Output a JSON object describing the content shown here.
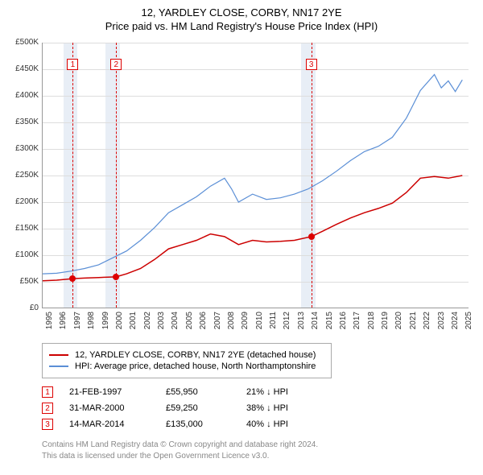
{
  "title": "12, YARDLEY CLOSE, CORBY, NN17 2YE",
  "subtitle": "Price paid vs. HM Land Registry's House Price Index (HPI)",
  "chart": {
    "type": "line",
    "ylim": [
      0,
      500000
    ],
    "ytick_step": 50000,
    "ylabels": [
      "£0",
      "£50K",
      "£100K",
      "£150K",
      "£200K",
      "£250K",
      "£300K",
      "£350K",
      "£400K",
      "£450K",
      "£500K"
    ],
    "xlim": [
      1995,
      2025.5
    ],
    "xticks": [
      1995,
      1996,
      1997,
      1998,
      1999,
      2000,
      2001,
      2002,
      2003,
      2004,
      2005,
      2006,
      2007,
      2008,
      2009,
      2010,
      2011,
      2012,
      2013,
      2014,
      2015,
      2016,
      2017,
      2018,
      2019,
      2020,
      2021,
      2022,
      2023,
      2024,
      2025
    ],
    "shaded_bands": [
      {
        "from": 1996.5,
        "to": 1997.5,
        "color": "#e8eef6"
      },
      {
        "from": 1999.5,
        "to": 2000.5,
        "color": "#e8eef6"
      },
      {
        "from": 2013.5,
        "to": 2014.5,
        "color": "#e8eef6"
      }
    ],
    "markers": [
      {
        "n": "1",
        "x": 1997.15,
        "date": "21-FEB-1997",
        "price_text": "£55,950",
        "price": 55950,
        "delta": "21% ↓ HPI"
      },
      {
        "n": "2",
        "x": 2000.25,
        "date": "31-MAR-2000",
        "price_text": "£59,250",
        "price": 59250,
        "delta": "38% ↓ HPI"
      },
      {
        "n": "3",
        "x": 2014.2,
        "date": "14-MAR-2014",
        "price_text": "£135,000",
        "price": 135000,
        "delta": "40% ↓ HPI"
      }
    ],
    "series": [
      {
        "name": "property",
        "label": "12, YARDLEY CLOSE, CORBY, NN17 2YE (detached house)",
        "color": "#cc0000",
        "width": 1.5,
        "data": [
          [
            1995,
            52000
          ],
          [
            1996,
            53000
          ],
          [
            1997.15,
            55950
          ],
          [
            1998,
            57000
          ],
          [
            1999,
            58000
          ],
          [
            2000.25,
            59250
          ],
          [
            2001,
            65000
          ],
          [
            2002,
            75000
          ],
          [
            2003,
            92000
          ],
          [
            2004,
            112000
          ],
          [
            2005,
            120000
          ],
          [
            2006,
            128000
          ],
          [
            2007,
            140000
          ],
          [
            2008,
            135000
          ],
          [
            2009,
            120000
          ],
          [
            2010,
            128000
          ],
          [
            2011,
            125000
          ],
          [
            2012,
            126000
          ],
          [
            2013,
            128000
          ],
          [
            2014.2,
            135000
          ],
          [
            2015,
            145000
          ],
          [
            2016,
            158000
          ],
          [
            2017,
            170000
          ],
          [
            2018,
            180000
          ],
          [
            2019,
            188000
          ],
          [
            2020,
            198000
          ],
          [
            2021,
            218000
          ],
          [
            2022,
            245000
          ],
          [
            2023,
            248000
          ],
          [
            2024,
            245000
          ],
          [
            2025,
            250000
          ]
        ]
      },
      {
        "name": "hpi",
        "label": "HPI: Average price, detached house, North Northamptonshire",
        "color": "#5b8fd6",
        "width": 1.2,
        "data": [
          [
            1995,
            65000
          ],
          [
            1996,
            66000
          ],
          [
            1997,
            70000
          ],
          [
            1998,
            75000
          ],
          [
            1999,
            82000
          ],
          [
            2000,
            95000
          ],
          [
            2001,
            108000
          ],
          [
            2002,
            128000
          ],
          [
            2003,
            152000
          ],
          [
            2004,
            180000
          ],
          [
            2005,
            195000
          ],
          [
            2006,
            210000
          ],
          [
            2007,
            230000
          ],
          [
            2008,
            245000
          ],
          [
            2008.5,
            225000
          ],
          [
            2009,
            200000
          ],
          [
            2010,
            215000
          ],
          [
            2011,
            205000
          ],
          [
            2012,
            208000
          ],
          [
            2013,
            215000
          ],
          [
            2014,
            225000
          ],
          [
            2015,
            240000
          ],
          [
            2016,
            258000
          ],
          [
            2017,
            278000
          ],
          [
            2018,
            295000
          ],
          [
            2019,
            305000
          ],
          [
            2020,
            322000
          ],
          [
            2021,
            358000
          ],
          [
            2022,
            410000
          ],
          [
            2023,
            440000
          ],
          [
            2023.5,
            415000
          ],
          [
            2024,
            428000
          ],
          [
            2024.5,
            408000
          ],
          [
            2025,
            430000
          ]
        ]
      }
    ]
  },
  "legend": {
    "rows": [
      {
        "color": "#cc0000",
        "label": "12, YARDLEY CLOSE, CORBY, NN17 2YE (detached house)"
      },
      {
        "color": "#5b8fd6",
        "label": "HPI: Average price, detached house, North Northamptonshire"
      }
    ]
  },
  "credits": {
    "line1": "Contains HM Land Registry data © Crown copyright and database right 2024.",
    "line2": "This data is licensed under the Open Government Licence v3.0."
  }
}
